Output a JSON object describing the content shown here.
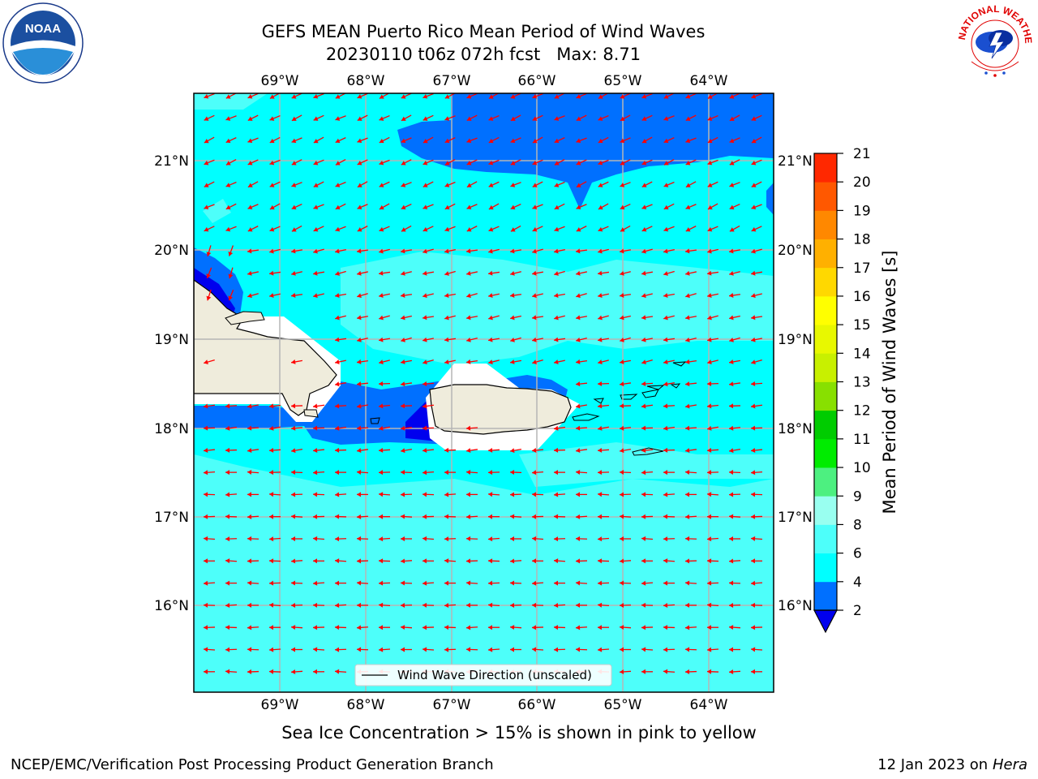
{
  "title": {
    "line1": "GEFS MEAN Puerto Rico Mean Period of Wind Waves",
    "line2": "20230110 t06z 072h fcst   Max: 8.71"
  },
  "map": {
    "lon_labels": [
      "69°W",
      "68°W",
      "67°W",
      "66°W",
      "65°W",
      "64°W"
    ],
    "lat_labels": [
      "21°N",
      "20°N",
      "19°N",
      "18°N",
      "17°N",
      "16°N"
    ],
    "legend_label": "Wind Wave Direction (unscaled)",
    "arrow_color": "#ff0000",
    "land_color": "#efecdc"
  },
  "colorbar": {
    "title": "Mean Period of Wind Waves [s]",
    "ticks": [
      "2",
      "4",
      "6",
      "8",
      "9",
      "10",
      "11",
      "12",
      "13",
      "14",
      "15",
      "16",
      "17",
      "18",
      "19",
      "20",
      "21"
    ],
    "colors": [
      "#0070ff",
      "#00ffff",
      "#4dfffa",
      "#99fff0",
      "#4df080",
      "#00ec00",
      "#00cc00",
      "#88e000",
      "#c8f000",
      "#e8f800",
      "#ffff00",
      "#ffd800",
      "#ffb000",
      "#ff8800",
      "#ff5800",
      "#ff2800"
    ],
    "under_color": "#0000ee"
  },
  "caption": "Sea Ice Concentration > 15% is shown in pink to yellow",
  "footer": {
    "credit": "NCEP/EMC/Verification Post Processing Product Generation Branch",
    "date_prefix": "12 Jan 2023 on ",
    "date_host": "Hera"
  },
  "logos": {
    "noaa_text": "NOAA",
    "nws_text": "NATIONAL WEATHER SERVICE"
  }
}
